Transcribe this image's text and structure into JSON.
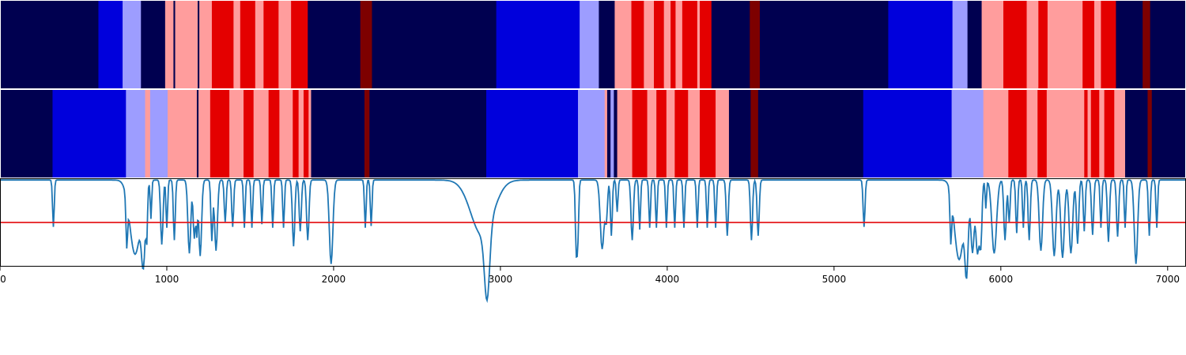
{
  "chart_data": {
    "type": "heatmap",
    "title": "",
    "xlabel": "",
    "ylabel": "",
    "xlim": [
      0,
      7110
    ],
    "ylim_line": [
      0,
      1
    ],
    "threshold": 0.5,
    "xticks": [
      0,
      1000,
      2000,
      3000,
      4000,
      5000,
      6000,
      7000
    ],
    "colors": {
      "navy": "#000050",
      "blue": "#0000dc",
      "light_blue": "#9d9dff",
      "pink": "#ff9d9d",
      "red": "#e40000",
      "dark_red": "#7d0000",
      "line": "#1f77b4",
      "threshold": "#e41a1c"
    },
    "rows": [
      {
        "segments": [
          [
            0,
            590,
            "navy"
          ],
          [
            590,
            735,
            "blue"
          ],
          [
            735,
            845,
            "light_blue"
          ],
          [
            845,
            990,
            "navy"
          ],
          [
            990,
            1040,
            "pink"
          ],
          [
            1040,
            1050,
            "navy"
          ],
          [
            1050,
            1185,
            "pink"
          ],
          [
            1185,
            1195,
            "navy"
          ],
          [
            1195,
            1270,
            "pink"
          ],
          [
            1270,
            1400,
            "red"
          ],
          [
            1400,
            1440,
            "pink"
          ],
          [
            1440,
            1530,
            "red"
          ],
          [
            1530,
            1580,
            "pink"
          ],
          [
            1580,
            1670,
            "red"
          ],
          [
            1670,
            1745,
            "pink"
          ],
          [
            1745,
            1845,
            "red"
          ],
          [
            1845,
            2160,
            "navy"
          ],
          [
            2160,
            2230,
            "dark_red"
          ],
          [
            2230,
            2975,
            "navy"
          ],
          [
            2975,
            3475,
            "blue"
          ],
          [
            3475,
            3590,
            "light_blue"
          ],
          [
            3590,
            3685,
            "navy"
          ],
          [
            3685,
            3785,
            "pink"
          ],
          [
            3785,
            3860,
            "red"
          ],
          [
            3860,
            3920,
            "pink"
          ],
          [
            3920,
            3980,
            "red"
          ],
          [
            3980,
            4020,
            "pink"
          ],
          [
            4020,
            4050,
            "red"
          ],
          [
            4050,
            4090,
            "pink"
          ],
          [
            4090,
            4180,
            "red"
          ],
          [
            4180,
            4195,
            "pink"
          ],
          [
            4195,
            4265,
            "red"
          ],
          [
            4265,
            4495,
            "navy"
          ],
          [
            4495,
            4555,
            "dark_red"
          ],
          [
            4555,
            5325,
            "navy"
          ],
          [
            5325,
            5710,
            "blue"
          ],
          [
            5710,
            5800,
            "light_blue"
          ],
          [
            5800,
            5885,
            "navy"
          ],
          [
            5885,
            6015,
            "pink"
          ],
          [
            6015,
            6155,
            "red"
          ],
          [
            6155,
            6225,
            "pink"
          ],
          [
            6225,
            6280,
            "red"
          ],
          [
            6280,
            6490,
            "pink"
          ],
          [
            6490,
            6560,
            "red"
          ],
          [
            6560,
            6600,
            "pink"
          ],
          [
            6600,
            6690,
            "red"
          ],
          [
            6690,
            6850,
            "navy"
          ],
          [
            6850,
            6895,
            "dark_red"
          ],
          [
            6895,
            7110,
            "navy"
          ]
        ]
      },
      {
        "segments": [
          [
            0,
            315,
            "navy"
          ],
          [
            315,
            755,
            "blue"
          ],
          [
            755,
            870,
            "light_blue"
          ],
          [
            870,
            900,
            "pink"
          ],
          [
            900,
            1005,
            "light_blue"
          ],
          [
            1005,
            1180,
            "pink"
          ],
          [
            1180,
            1190,
            "navy"
          ],
          [
            1190,
            1260,
            "pink"
          ],
          [
            1260,
            1375,
            "red"
          ],
          [
            1375,
            1460,
            "pink"
          ],
          [
            1460,
            1520,
            "red"
          ],
          [
            1520,
            1610,
            "pink"
          ],
          [
            1610,
            1675,
            "red"
          ],
          [
            1675,
            1755,
            "pink"
          ],
          [
            1755,
            1790,
            "red"
          ],
          [
            1790,
            1820,
            "pink"
          ],
          [
            1820,
            1850,
            "red"
          ],
          [
            1850,
            1865,
            "pink"
          ],
          [
            1865,
            2185,
            "navy"
          ],
          [
            2185,
            2215,
            "dark_red"
          ],
          [
            2215,
            2915,
            "navy"
          ],
          [
            2915,
            3465,
            "blue"
          ],
          [
            3465,
            3625,
            "light_blue"
          ],
          [
            3625,
            3640,
            "pink"
          ],
          [
            3640,
            3660,
            "navy"
          ],
          [
            3660,
            3680,
            "light_blue"
          ],
          [
            3680,
            3700,
            "navy"
          ],
          [
            3700,
            3790,
            "pink"
          ],
          [
            3790,
            3880,
            "red"
          ],
          [
            3880,
            3935,
            "pink"
          ],
          [
            3935,
            3995,
            "red"
          ],
          [
            3995,
            4045,
            "pink"
          ],
          [
            4045,
            4125,
            "red"
          ],
          [
            4125,
            4195,
            "pink"
          ],
          [
            4195,
            4290,
            "red"
          ],
          [
            4290,
            4370,
            "pink"
          ],
          [
            4370,
            4500,
            "navy"
          ],
          [
            4500,
            4545,
            "dark_red"
          ],
          [
            4545,
            5175,
            "navy"
          ],
          [
            5175,
            5705,
            "blue"
          ],
          [
            5705,
            5895,
            "light_blue"
          ],
          [
            5895,
            6045,
            "pink"
          ],
          [
            6045,
            6155,
            "red"
          ],
          [
            6155,
            6220,
            "pink"
          ],
          [
            6220,
            6275,
            "red"
          ],
          [
            6275,
            6500,
            "pink"
          ],
          [
            6500,
            6520,
            "red"
          ],
          [
            6520,
            6540,
            "pink"
          ],
          [
            6540,
            6590,
            "red"
          ],
          [
            6590,
            6620,
            "pink"
          ],
          [
            6620,
            6680,
            "red"
          ],
          [
            6680,
            6745,
            "pink"
          ],
          [
            6745,
            6880,
            "navy"
          ],
          [
            6880,
            6905,
            "dark_red"
          ],
          [
            6905,
            7110,
            "navy"
          ]
        ]
      }
    ],
    "line_baseline": 0.98,
    "dips": [
      [
        320,
        0.45,
        7
      ],
      [
        760,
        0.45,
        7
      ],
      [
        810,
        0.14,
        45
      ],
      [
        860,
        0.22,
        16
      ],
      [
        880,
        0.48,
        6
      ],
      [
        905,
        0.55,
        6
      ],
      [
        970,
        0.25,
        10
      ],
      [
        1000,
        0.44,
        7
      ],
      [
        1045,
        0.3,
        8
      ],
      [
        1135,
        0.15,
        12
      ],
      [
        1165,
        0.32,
        10
      ],
      [
        1180,
        0.45,
        6
      ],
      [
        1200,
        0.12,
        12
      ],
      [
        1270,
        0.3,
        8
      ],
      [
        1295,
        0.18,
        12
      ],
      [
        1350,
        0.5,
        8
      ],
      [
        1395,
        0.45,
        8
      ],
      [
        1465,
        0.44,
        7
      ],
      [
        1510,
        0.44,
        7
      ],
      [
        1570,
        0.48,
        7
      ],
      [
        1635,
        0.44,
        7
      ],
      [
        1700,
        0.44,
        7
      ],
      [
        1760,
        0.23,
        10
      ],
      [
        1800,
        0.4,
        9
      ],
      [
        1845,
        0.3,
        10
      ],
      [
        1985,
        0.03,
        15
      ],
      [
        2190,
        0.44,
        7
      ],
      [
        2225,
        0.46,
        7
      ],
      [
        2890,
        0.36,
        95
      ],
      [
        2920,
        0.18,
        22
      ],
      [
        3455,
        0.18,
        8
      ],
      [
        3465,
        0.44,
        7
      ],
      [
        3610,
        0.2,
        16
      ],
      [
        3635,
        0.55,
        10
      ],
      [
        3665,
        0.35,
        8
      ],
      [
        3700,
        0.62,
        7
      ],
      [
        3790,
        0.3,
        10
      ],
      [
        3835,
        0.42,
        7
      ],
      [
        3895,
        0.44,
        7
      ],
      [
        3935,
        0.44,
        7
      ],
      [
        3995,
        0.44,
        7
      ],
      [
        4045,
        0.44,
        7
      ],
      [
        4100,
        0.44,
        7
      ],
      [
        4180,
        0.44,
        7
      ],
      [
        4240,
        0.44,
        7
      ],
      [
        4290,
        0.44,
        7
      ],
      [
        4360,
        0.35,
        9
      ],
      [
        4505,
        0.3,
        9
      ],
      [
        4545,
        0.35,
        9
      ],
      [
        5180,
        0.45,
        8
      ],
      [
        5700,
        0.44,
        7
      ],
      [
        5750,
        0.08,
        40
      ],
      [
        5795,
        0.12,
        14
      ],
      [
        5830,
        0.18,
        14
      ],
      [
        5860,
        0.16,
        14
      ],
      [
        5880,
        0.3,
        10
      ],
      [
        5910,
        0.66,
        6
      ],
      [
        5960,
        0.15,
        20
      ],
      [
        6025,
        0.3,
        10
      ],
      [
        6050,
        0.5,
        8
      ],
      [
        6095,
        0.38,
        8
      ],
      [
        6135,
        0.44,
        7
      ],
      [
        6170,
        0.3,
        9
      ],
      [
        6240,
        0.18,
        14
      ],
      [
        6320,
        0.12,
        15
      ],
      [
        6370,
        0.1,
        15
      ],
      [
        6420,
        0.15,
        15
      ],
      [
        6460,
        0.26,
        10
      ],
      [
        6500,
        0.4,
        8
      ],
      [
        6550,
        0.36,
        9
      ],
      [
        6600,
        0.44,
        7
      ],
      [
        6645,
        0.28,
        9
      ],
      [
        6700,
        0.34,
        9
      ],
      [
        6745,
        0.44,
        7
      ],
      [
        6810,
        0.03,
        14
      ],
      [
        6890,
        0.35,
        8
      ],
      [
        6935,
        0.44,
        7
      ]
    ]
  }
}
